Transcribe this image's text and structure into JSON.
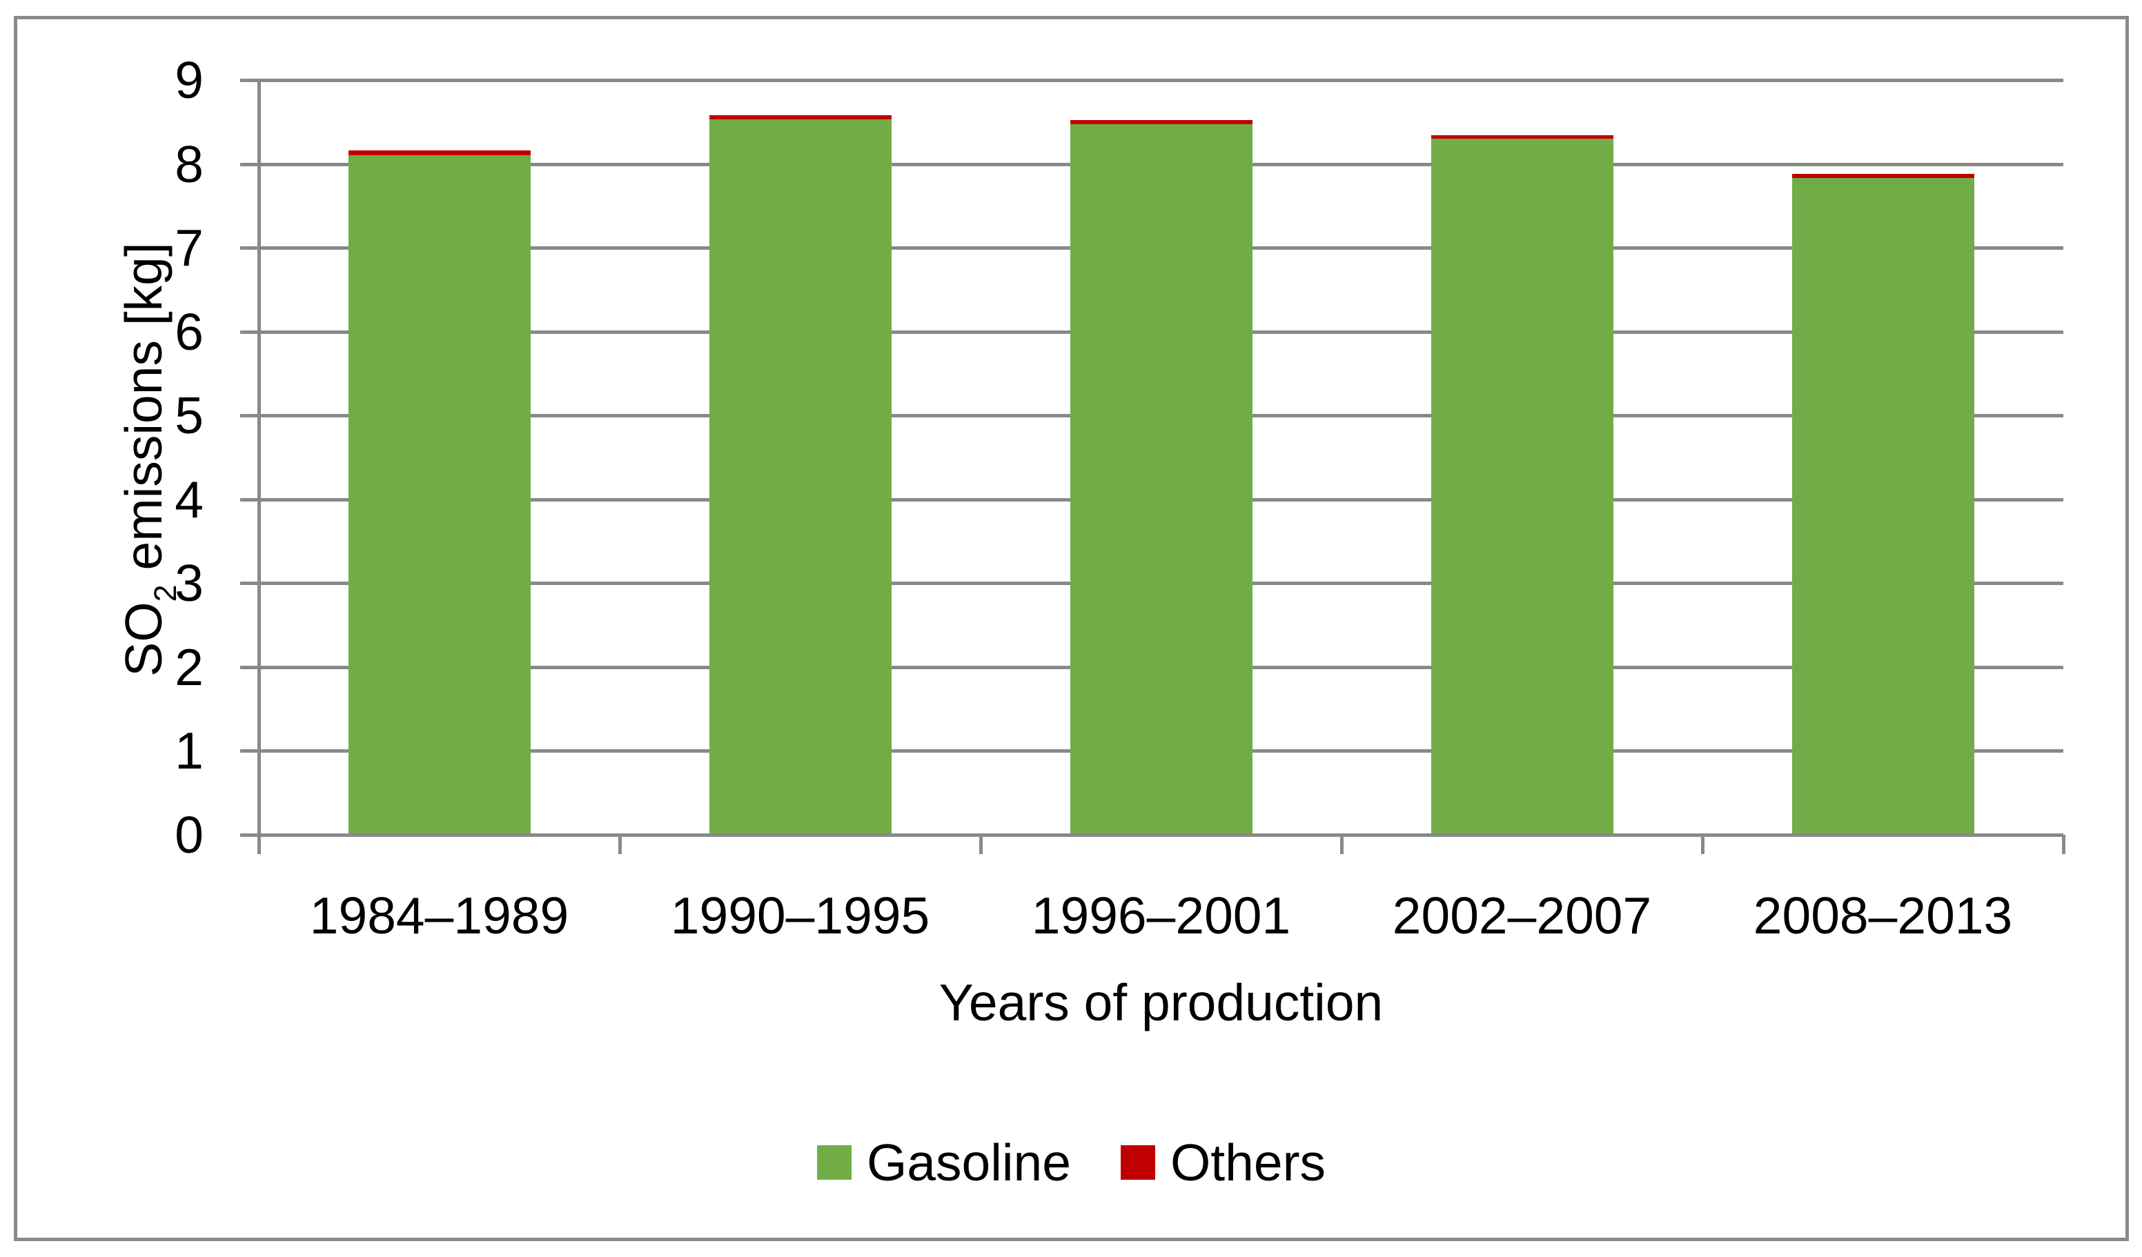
{
  "chart_data": {
    "type": "bar",
    "stacked": true,
    "categories": [
      "1984–1989",
      "1990–1995",
      "1996–2001",
      "2002–2007",
      "2008–2013"
    ],
    "series": [
      {
        "name": "Gasoline",
        "color": "#70AD47",
        "values": [
          8.1,
          8.53,
          8.47,
          8.3,
          7.83
        ]
      },
      {
        "name": "Others",
        "color": "#C00000",
        "values": [
          0.06,
          0.05,
          0.05,
          0.04,
          0.05
        ]
      }
    ],
    "totals": [
      8.16,
      8.58,
      8.52,
      8.34,
      7.88
    ],
    "xlabel": "Years of production",
    "ylabel": "SO2 emissions [kg]",
    "ylabel_parts": {
      "prefix": "SO",
      "sub": "2",
      "suffix": " emissions [kg]"
    },
    "ylim": [
      0,
      9
    ],
    "yticks": [
      0,
      1,
      2,
      3,
      4,
      5,
      6,
      7,
      8,
      9
    ],
    "grid": "horizontal-major",
    "legend_position": "bottom-center",
    "colors": {
      "gridline": "#898989",
      "axis": "#898989",
      "outer_border": "#898989",
      "text": "#000000",
      "background": "#FFFFFF"
    }
  }
}
